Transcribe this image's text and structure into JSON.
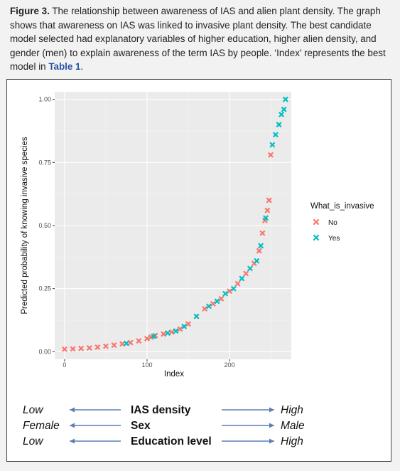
{
  "caption": {
    "label": "Figure 3.",
    "text": " The relationship between awareness of IAS and alien plant density. The graph shows that awareness on IAS was linked to invasive plant density. The best candidate model selected had explanatory variables of higher education, higher alien density, and gender (men) to explain awareness of the term IAS by people. ‘Index’ represents the best model in ",
    "link": "Table 1",
    "end": "."
  },
  "chart_data": {
    "type": "scatter",
    "xlabel": "Index",
    "ylabel": "Predicted probability of knowing invasive species",
    "xlim": [
      -12,
      275
    ],
    "ylim": [
      -0.03,
      1.03
    ],
    "xticks": [
      0,
      100,
      200
    ],
    "xtick_labels": [
      "0",
      "100",
      "200"
    ],
    "yticks": [
      0,
      0.25,
      0.5,
      0.75,
      1.0
    ],
    "ytick_labels": [
      "0.00",
      "0.25",
      "0.50",
      "0.75",
      "1.00"
    ],
    "grid": true,
    "legend_position": "right",
    "legend_title": "What_is_invasive",
    "marker": "x",
    "series": [
      {
        "name": "No",
        "color": "#f8766d",
        "points": [
          [
            0,
            0.01
          ],
          [
            10,
            0.011
          ],
          [
            20,
            0.013
          ],
          [
            30,
            0.015
          ],
          [
            40,
            0.018
          ],
          [
            50,
            0.022
          ],
          [
            60,
            0.026
          ],
          [
            70,
            0.031
          ],
          [
            80,
            0.036
          ],
          [
            90,
            0.043
          ],
          [
            100,
            0.052
          ],
          [
            105,
            0.058
          ],
          [
            110,
            0.064
          ],
          [
            120,
            0.07
          ],
          [
            130,
            0.078
          ],
          [
            140,
            0.09
          ],
          [
            150,
            0.11
          ],
          [
            160,
            0.14
          ],
          [
            170,
            0.17
          ],
          [
            180,
            0.19
          ],
          [
            190,
            0.21
          ],
          [
            200,
            0.24
          ],
          [
            210,
            0.27
          ],
          [
            220,
            0.31
          ],
          [
            230,
            0.35
          ],
          [
            236,
            0.4
          ],
          [
            240,
            0.47
          ],
          [
            243,
            0.52
          ],
          [
            246,
            0.56
          ],
          [
            248,
            0.6
          ],
          [
            250,
            0.78
          ]
        ]
      },
      {
        "name": "Yes",
        "color": "#00bfc4",
        "points": [
          [
            75,
            0.033
          ],
          [
            108,
            0.061
          ],
          [
            125,
            0.074
          ],
          [
            135,
            0.082
          ],
          [
            145,
            0.1
          ],
          [
            160,
            0.14
          ],
          [
            175,
            0.18
          ],
          [
            185,
            0.2
          ],
          [
            195,
            0.23
          ],
          [
            205,
            0.25
          ],
          [
            215,
            0.29
          ],
          [
            225,
            0.33
          ],
          [
            233,
            0.36
          ],
          [
            238,
            0.42
          ],
          [
            244,
            0.53
          ],
          [
            252,
            0.82
          ],
          [
            256,
            0.86
          ],
          [
            260,
            0.9
          ],
          [
            263,
            0.94
          ],
          [
            266,
            0.96
          ],
          [
            268,
            1.0
          ]
        ]
      }
    ]
  },
  "lower": {
    "rows": [
      {
        "left": "Low",
        "center": "IAS density",
        "right": "High"
      },
      {
        "left": "Female",
        "center": "Sex",
        "right": "Male"
      },
      {
        "left": "Low",
        "center": "Education level",
        "right": "High"
      }
    ]
  }
}
